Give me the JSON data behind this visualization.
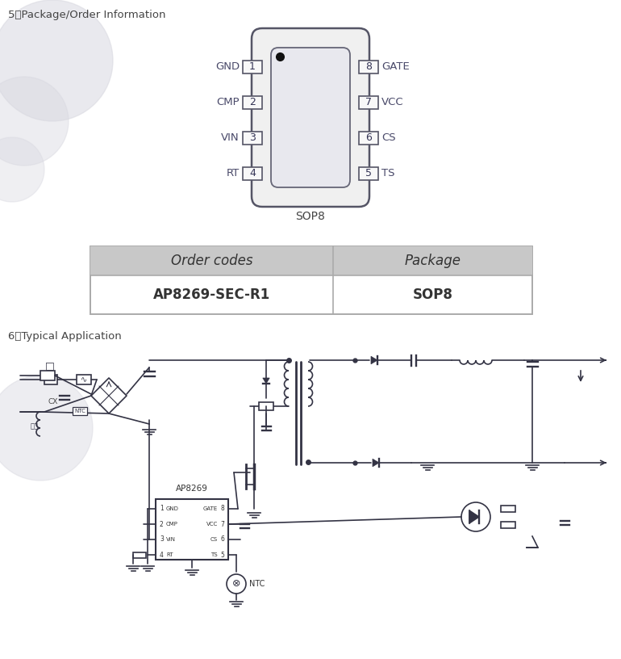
{
  "section5_title": "5、Package/Order Information",
  "section6_title": "6、Typical Application",
  "sop8_label": "SOP8",
  "left_pins": [
    {
      "num": "1",
      "name": "GND"
    },
    {
      "num": "2",
      "name": "CMP"
    },
    {
      "num": "3",
      "name": "VIN"
    },
    {
      "num": "4",
      "name": "RT"
    }
  ],
  "right_pins": [
    {
      "num": "8",
      "name": "GATE"
    },
    {
      "num": "7",
      "name": "VCC"
    },
    {
      "num": "6",
      "name": "CS"
    },
    {
      "num": "5",
      "name": "TS"
    }
  ],
  "table_header": [
    "Order codes",
    "Package"
  ],
  "table_row": [
    "AP8269-SEC-R1",
    "SOP8"
  ],
  "bg_color": "#ffffff",
  "line_color": "#333344",
  "pin_text_color": "#4a4a6a",
  "table_header_bg": "#c8c8c8",
  "ic_body_fill": "#f2f2f2",
  "ic_inner_fill": "#eaeaf0",
  "wm_color": "#d8d8e0"
}
